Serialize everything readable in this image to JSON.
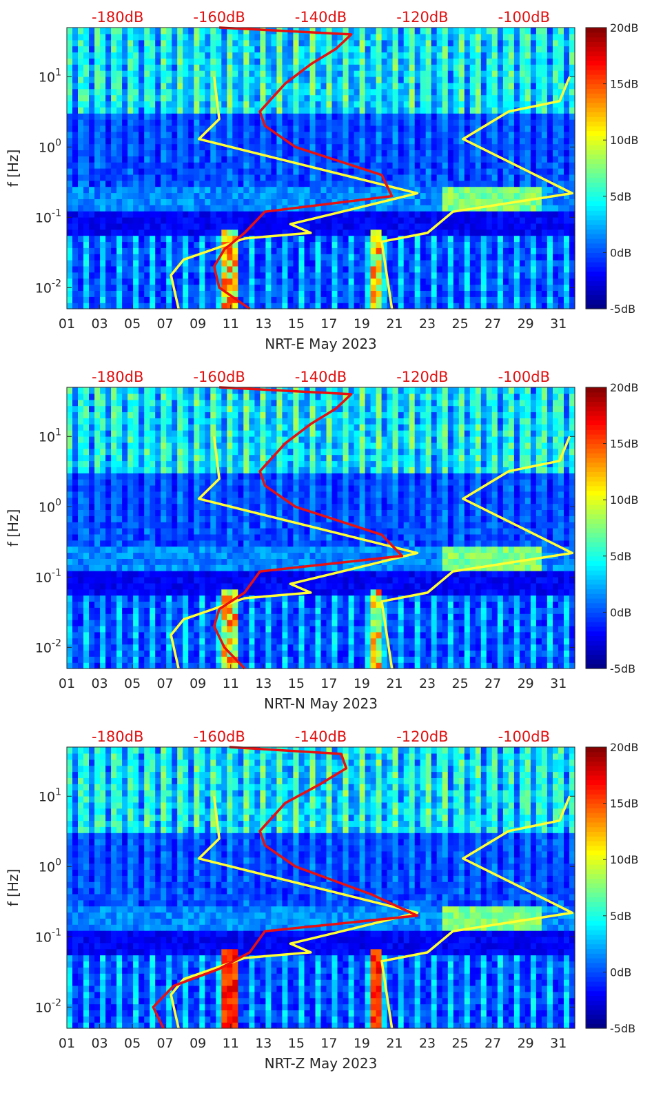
{
  "chart_data": [
    {
      "type": "heatmap",
      "title": "",
      "xlabel": "NRT-E May 2023",
      "ylabel": "f [Hz]",
      "x_ticks": [
        "01",
        "03",
        "05",
        "07",
        "09",
        "11",
        "13",
        "15",
        "17",
        "19",
        "21",
        "23",
        "25",
        "27",
        "29",
        "31"
      ],
      "x_range_days": [
        1,
        32
      ],
      "y_scale": "log",
      "y_range_hz": [
        0.005,
        50
      ],
      "y_ticks": [
        {
          "base": "10",
          "exp": "-2"
        },
        {
          "base": "10",
          "exp": "-1"
        },
        {
          "base": "10",
          "exp": "0"
        },
        {
          "base": "10",
          "exp": "1"
        }
      ],
      "top_db_labels": [
        "-180dB",
        "-160dB",
        "-140dB",
        "-120dB",
        "-100dB"
      ],
      "top_db_range": [
        -190,
        -90
      ],
      "colorbar": {
        "labels": [
          "20dB",
          "15dB",
          "10dB",
          "5dB",
          "0dB",
          "-5dB"
        ],
        "range": [
          -5,
          20
        ],
        "colormap": "jet"
      },
      "curve_colors": {
        "noise_models": "#ffff33",
        "median_psd": "#e81010"
      },
      "low_noise_model_db": [
        [
          0.005,
          -168
        ],
        [
          0.015,
          -169.5
        ],
        [
          0.025,
          -167
        ],
        [
          0.05,
          -155
        ],
        [
          0.06,
          -142
        ],
        [
          0.08,
          -146
        ],
        [
          0.11,
          -138
        ],
        [
          0.22,
          -121
        ],
        [
          1.3,
          -164
        ],
        [
          2.5,
          -160
        ],
        [
          10,
          -161
        ]
      ],
      "high_noise_model_db": [
        [
          0.005,
          -126
        ],
        [
          0.045,
          -128
        ],
        [
          0.06,
          -119
        ],
        [
          0.12,
          -114
        ],
        [
          0.22,
          -90.5
        ],
        [
          1.3,
          -112
        ],
        [
          3.2,
          -103
        ],
        [
          4.5,
          -93
        ],
        [
          10,
          -91
        ]
      ],
      "median_psd_db": [
        [
          0.005,
          -154
        ],
        [
          0.01,
          -160
        ],
        [
          0.02,
          -161
        ],
        [
          0.035,
          -159
        ],
        [
          0.06,
          -155
        ],
        [
          0.12,
          -151
        ],
        [
          0.2,
          -126
        ],
        [
          0.4,
          -128
        ],
        [
          1,
          -145
        ],
        [
          2,
          -151
        ],
        [
          3.2,
          -152
        ],
        [
          8,
          -147
        ],
        [
          15,
          -142
        ],
        [
          25,
          -137
        ],
        [
          40,
          -134
        ],
        [
          50,
          -160
        ]
      ]
    },
    {
      "type": "heatmap",
      "title": "",
      "xlabel": "NRT-N May 2023",
      "ylabel": "f [Hz]",
      "x_ticks": [
        "01",
        "03",
        "05",
        "07",
        "09",
        "11",
        "13",
        "15",
        "17",
        "19",
        "21",
        "23",
        "25",
        "27",
        "29",
        "31"
      ],
      "x_range_days": [
        1,
        32
      ],
      "y_scale": "log",
      "y_range_hz": [
        0.005,
        50
      ],
      "y_ticks": [
        {
          "base": "10",
          "exp": "-2"
        },
        {
          "base": "10",
          "exp": "-1"
        },
        {
          "base": "10",
          "exp": "0"
        },
        {
          "base": "10",
          "exp": "1"
        }
      ],
      "top_db_labels": [
        "-180dB",
        "-160dB",
        "-140dB",
        "-120dB",
        "-100dB"
      ],
      "top_db_range": [
        -190,
        -90
      ],
      "colorbar": {
        "labels": [
          "20dB",
          "15dB",
          "10dB",
          "5dB",
          "0dB",
          "-5dB"
        ],
        "range": [
          -5,
          20
        ],
        "colormap": "jet"
      },
      "curve_colors": {
        "noise_models": "#ffff33",
        "median_psd": "#e81010"
      },
      "low_noise_model_db": [
        [
          0.005,
          -168
        ],
        [
          0.015,
          -169.5
        ],
        [
          0.025,
          -167
        ],
        [
          0.05,
          -155
        ],
        [
          0.06,
          -142
        ],
        [
          0.08,
          -146
        ],
        [
          0.11,
          -138
        ],
        [
          0.22,
          -121
        ],
        [
          1.3,
          -164
        ],
        [
          2.5,
          -160
        ],
        [
          10,
          -161
        ]
      ],
      "high_noise_model_db": [
        [
          0.005,
          -126
        ],
        [
          0.045,
          -128
        ],
        [
          0.06,
          -119
        ],
        [
          0.12,
          -114
        ],
        [
          0.22,
          -90.5
        ],
        [
          1.3,
          -112
        ],
        [
          3.2,
          -103
        ],
        [
          4.5,
          -93
        ],
        [
          10,
          -91
        ]
      ],
      "median_psd_db": [
        [
          0.005,
          -155
        ],
        [
          0.01,
          -159
        ],
        [
          0.02,
          -161
        ],
        [
          0.035,
          -160
        ],
        [
          0.06,
          -155
        ],
        [
          0.12,
          -152
        ],
        [
          0.2,
          -124
        ],
        [
          0.4,
          -128
        ],
        [
          1,
          -145
        ],
        [
          2,
          -151
        ],
        [
          3.2,
          -152
        ],
        [
          8,
          -147
        ],
        [
          15,
          -142
        ],
        [
          25,
          -137
        ],
        [
          40,
          -134
        ],
        [
          50,
          -160
        ]
      ]
    },
    {
      "type": "heatmap",
      "title": "",
      "xlabel": "NRT-Z May 2023",
      "ylabel": "f [Hz]",
      "x_ticks": [
        "01",
        "03",
        "05",
        "07",
        "09",
        "11",
        "13",
        "15",
        "17",
        "19",
        "21",
        "23",
        "25",
        "27",
        "29",
        "31"
      ],
      "x_range_days": [
        1,
        32
      ],
      "y_scale": "log",
      "y_range_hz": [
        0.005,
        50
      ],
      "y_ticks": [
        {
          "base": "10",
          "exp": "-2"
        },
        {
          "base": "10",
          "exp": "-1"
        },
        {
          "base": "10",
          "exp": "0"
        },
        {
          "base": "10",
          "exp": "1"
        }
      ],
      "top_db_labels": [
        "-180dB",
        "-160dB",
        "-140dB",
        "-120dB",
        "-100dB"
      ],
      "top_db_range": [
        -190,
        -90
      ],
      "colorbar": {
        "labels": [
          "20dB",
          "15dB",
          "10dB",
          "5dB",
          "0dB",
          "-5dB"
        ],
        "range": [
          -5,
          20
        ],
        "colormap": "jet"
      },
      "curve_colors": {
        "noise_models": "#ffff33",
        "median_psd": "#e81010"
      },
      "low_noise_model_db": [
        [
          0.005,
          -168
        ],
        [
          0.015,
          -169.5
        ],
        [
          0.025,
          -167
        ],
        [
          0.05,
          -155
        ],
        [
          0.06,
          -142
        ],
        [
          0.08,
          -146
        ],
        [
          0.11,
          -138
        ],
        [
          0.22,
          -121
        ],
        [
          1.3,
          -164
        ],
        [
          2.5,
          -160
        ],
        [
          10,
          -161
        ]
      ],
      "high_noise_model_db": [
        [
          0.005,
          -126
        ],
        [
          0.045,
          -128
        ],
        [
          0.06,
          -119
        ],
        [
          0.12,
          -114
        ],
        [
          0.22,
          -90.5
        ],
        [
          1.3,
          -112
        ],
        [
          3.2,
          -103
        ],
        [
          4.5,
          -93
        ],
        [
          10,
          -91
        ]
      ],
      "median_psd_db": [
        [
          0.005,
          -171
        ],
        [
          0.01,
          -173
        ],
        [
          0.02,
          -169
        ],
        [
          0.035,
          -160
        ],
        [
          0.06,
          -154
        ],
        [
          0.12,
          -151
        ],
        [
          0.2,
          -121
        ],
        [
          0.4,
          -130
        ],
        [
          1,
          -145
        ],
        [
          2,
          -151
        ],
        [
          3.2,
          -152
        ],
        [
          8,
          -147
        ],
        [
          15,
          -140
        ],
        [
          25,
          -135
        ],
        [
          40,
          -136
        ],
        [
          50,
          -158
        ]
      ]
    }
  ]
}
